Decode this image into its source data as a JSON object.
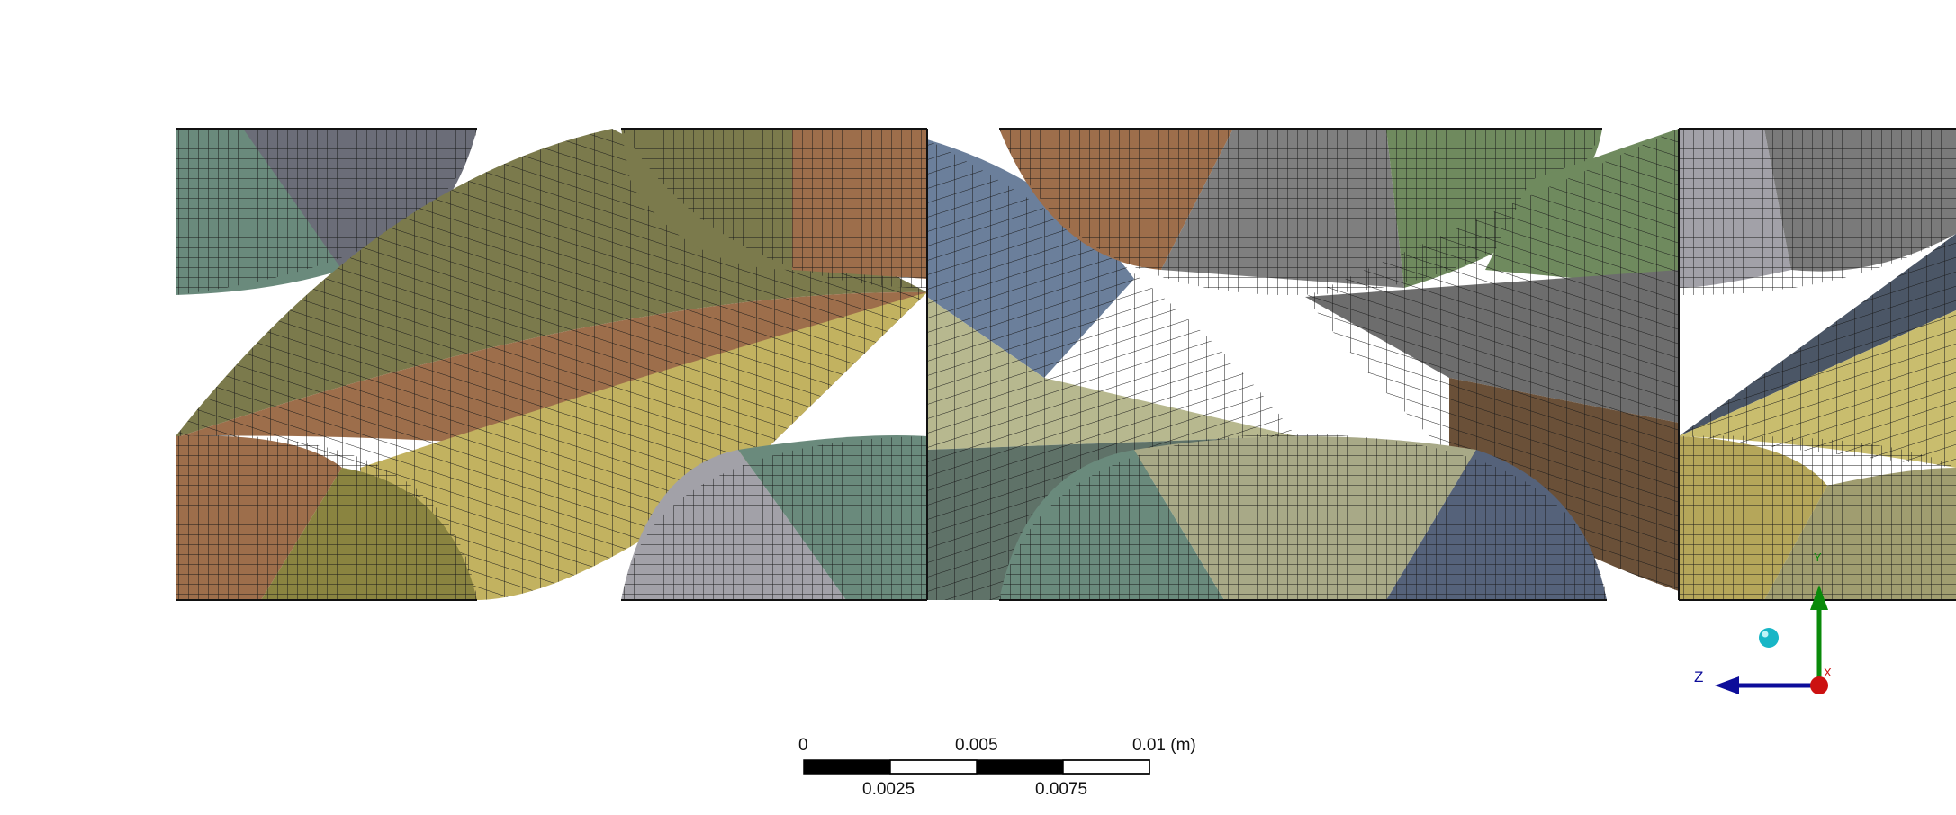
{
  "viewport": {
    "background": "#ffffff",
    "mesh_line_color": "#1a1a1a"
  },
  "scale_bar": {
    "top_labels": [
      "0",
      "0.005",
      "0.01 (m)"
    ],
    "bottom_labels": [
      "0.0025",
      "0.0075"
    ]
  },
  "triad": {
    "y_label": "Y",
    "x_label": "X",
    "z_label": "Z",
    "colors": {
      "y_axis": "#0a8a0a",
      "z_axis": "#0d0d9a",
      "x_origin": "#cc1111",
      "iso_sphere": "#18b6c6"
    }
  },
  "palette": {
    "teal": "#6a8a7c",
    "slate": "#6b6d78",
    "olive": "#7b7a4c",
    "brown": "#9d6e4b",
    "yellow": "#c2b260",
    "gray": "#7f7f7f",
    "blue": "#6b7f9b",
    "khaki": "#b7b88f",
    "green": "#6f8a5e",
    "darkslate": "#4b5666",
    "lightgray": "#a2a1a8"
  }
}
